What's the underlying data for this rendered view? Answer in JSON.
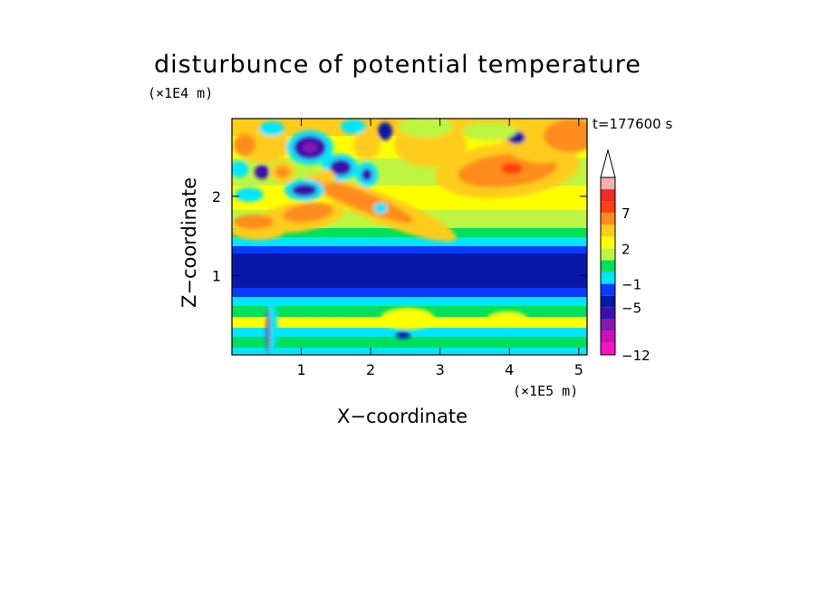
{
  "chart_data": {
    "type": "heatmap",
    "title": "disturbunce of potential temperature",
    "annotation_time": "t=177600 s",
    "xlabel": "X−coordinate",
    "ylabel": "Z−coordinate",
    "x_scale_label": "(×1E5 m)",
    "y_scale_label": "(×1E4 m)",
    "xlim": [
      0,
      5.12
    ],
    "ylim": [
      0,
      2.98
    ],
    "x_ticks": [
      1,
      2,
      3,
      4,
      5
    ],
    "y_ticks": [
      1,
      2
    ],
    "x_tick_labels": [
      "1",
      "2",
      "3",
      "4",
      "5"
    ],
    "y_tick_labels": [
      "1",
      "2"
    ],
    "colorbar": {
      "levels": [
        -12,
        -11,
        -9,
        -7,
        -5,
        -3,
        -1,
        0,
        1,
        2,
        3,
        5,
        7,
        9,
        11
      ],
      "labels": [
        {
          "value": -12,
          "text": "−12"
        },
        {
          "value": -5,
          "text": "−5"
        },
        {
          "value": -1,
          "text": "−1"
        },
        {
          "value": 2,
          "text": "2"
        },
        {
          "value": 7,
          "text": "7"
        }
      ],
      "colors": [
        "#ff10c8",
        "#cc10b4",
        "#8a18b0",
        "#3a10b0",
        "#0818a8",
        "#0a3cff",
        "#00e6ff",
        "#00e05a",
        "#bef542",
        "#ffff00",
        "#ffcc1a",
        "#ff8c1a",
        "#ff4010",
        "#f02828",
        "#f0b0b0"
      ],
      "extend_max": true
    },
    "features": [
      {
        "region": "lower band",
        "z_range": [
          0,
          0.75
        ],
        "value_range": [
          -1,
          2
        ],
        "description": "alternating green / cyan / yellow layers"
      },
      {
        "region": "mid band",
        "z_range": [
          0.75,
          1.45
        ],
        "value_range": [
          -5,
          -3
        ],
        "description": "strong cold layer across full domain"
      },
      {
        "region": "upper left",
        "x_range": [
          0,
          2.0
        ],
        "z_range": [
          1.8,
          2.9
        ],
        "value_range": [
          -9,
          5
        ],
        "description": "alternating warm/cold wave cells"
      },
      {
        "region": "upper right",
        "x_range": [
          3.3,
          4.7
        ],
        "z_range": [
          2.0,
          2.6
        ],
        "value_range": [
          3,
          7
        ],
        "description": "warm anomaly peak near x=4, z=2.3"
      }
    ]
  }
}
